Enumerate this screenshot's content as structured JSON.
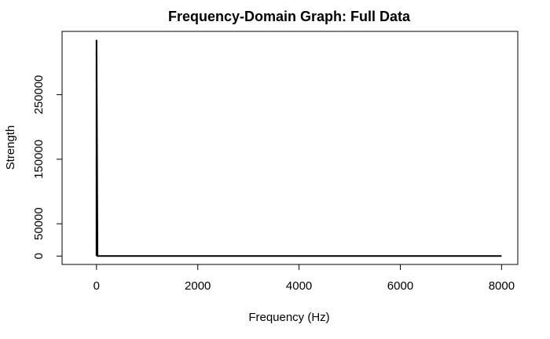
{
  "chart_data": {
    "type": "line",
    "title": "Frequency-Domain Graph: Full Data",
    "xlabel": "Frequency (Hz)",
    "ylabel": "Strength",
    "x_ticks": [
      0,
      2000,
      4000,
      6000,
      8000
    ],
    "y_ticks": [
      0,
      50000,
      150000,
      250000
    ],
    "xlim": [
      -680,
      8320
    ],
    "ylim": [
      -13000,
      348000
    ],
    "grid": false,
    "legend": "none",
    "line_color": "#000000",
    "series": [
      {
        "x": [
          0,
          0,
          20,
          8000
        ],
        "y": [
          0,
          335000,
          0,
          0
        ]
      }
    ]
  }
}
